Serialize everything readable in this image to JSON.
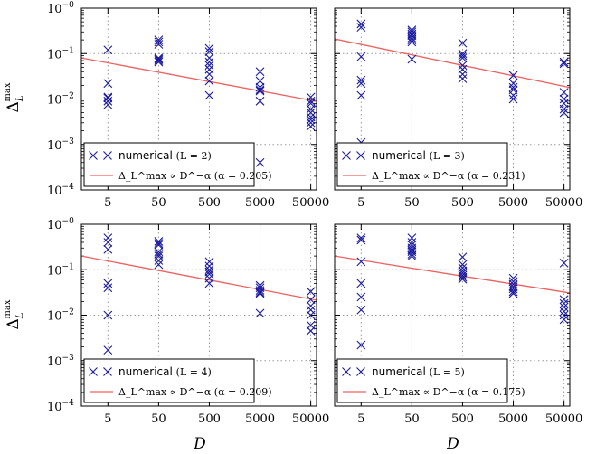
{
  "chart_data": [
    {
      "type": "scatter",
      "panel": "L=2",
      "x_ticks": [
        "5",
        "50",
        "500",
        "5000",
        "50000"
      ],
      "y_ticks": [
        "10^-4",
        "10^-3",
        "10^-2",
        "10^-1",
        "10^0"
      ],
      "xlabel": "",
      "ylabel": "Δ_L^max",
      "yscale": "log",
      "xscale": "log",
      "xlim": [
        1.5,
        65000
      ],
      "ylim": [
        0.0001,
        1
      ],
      "grid": true,
      "legend_position": "lower-left",
      "series": [
        {
          "name": "numerical (L = 2)",
          "marker": "x",
          "color": "#1a1aa0",
          "x": [
            5,
            5,
            5,
            5,
            5,
            5,
            50,
            50,
            50,
            50,
            50,
            50,
            50,
            500,
            500,
            500,
            500,
            500,
            500,
            500,
            500,
            500,
            5000,
            5000,
            5000,
            5000,
            5000,
            5000,
            5000,
            50000,
            50000,
            50000,
            50000,
            50000,
            50000,
            50000,
            50000,
            50000
          ],
          "y": [
            0.12,
            0.022,
            0.011,
            0.0105,
            0.009,
            0.0075,
            0.2,
            0.18,
            0.16,
            0.08,
            0.075,
            0.07,
            0.065,
            0.13,
            0.11,
            0.08,
            0.065,
            0.055,
            0.045,
            0.035,
            0.025,
            0.012,
            0.04,
            0.025,
            0.018,
            0.016,
            0.015,
            0.009,
            0.0004,
            0.011,
            0.009,
            0.008,
            0.006,
            0.005,
            0.004,
            0.0035,
            0.003,
            0.0025
          ]
        },
        {
          "name": "Δ_L^max ∝ D^-α (α = 0.205)",
          "type": "line",
          "color": "#f06060",
          "x": [
            1.5,
            65000
          ],
          "y": [
            0.08,
            0.0089
          ]
        }
      ]
    },
    {
      "type": "scatter",
      "panel": "L=3",
      "x_ticks": [
        "5",
        "50",
        "500",
        "5000",
        "50000"
      ],
      "y_ticks": [],
      "xlabel": "",
      "ylabel": "",
      "yscale": "log",
      "xscale": "log",
      "xlim": [
        1.5,
        65000
      ],
      "ylim": [
        0.0001,
        1
      ],
      "grid": true,
      "legend_position": "lower-left",
      "series": [
        {
          "name": "numerical (L = 3)",
          "marker": "x",
          "color": "#1a1aa0",
          "x": [
            5,
            5,
            5,
            5,
            5,
            5,
            5,
            50,
            50,
            50,
            50,
            50,
            50,
            50,
            50,
            500,
            500,
            500,
            500,
            500,
            500,
            500,
            500,
            5000,
            5000,
            5000,
            5000,
            5000,
            5000,
            50000,
            50000,
            50000,
            50000,
            50000,
            50000,
            50000
          ],
          "y": [
            0.45,
            0.38,
            0.085,
            0.026,
            0.022,
            0.012,
            0.0011,
            0.33,
            0.3,
            0.27,
            0.25,
            0.22,
            0.2,
            0.18,
            0.075,
            0.17,
            0.1,
            0.09,
            0.08,
            0.055,
            0.045,
            0.035,
            0.028,
            0.033,
            0.022,
            0.018,
            0.016,
            0.012,
            0.01,
            0.065,
            0.06,
            0.014,
            0.01,
            0.008,
            0.006,
            0.005
          ]
        },
        {
          "name": "Δ_L^max ∝ D^-α (α = 0.231)",
          "type": "line",
          "color": "#f06060",
          "x": [
            1.5,
            65000
          ],
          "y": [
            0.21,
            0.0179
          ]
        }
      ]
    },
    {
      "type": "scatter",
      "panel": "L=4",
      "x_ticks": [
        "5",
        "50",
        "500",
        "5000",
        "50000"
      ],
      "y_ticks": [
        "10^-4",
        "10^-3",
        "10^-2",
        "10^-1",
        "10^0"
      ],
      "xlabel": "D",
      "ylabel": "Δ_L^max",
      "yscale": "log",
      "xscale": "log",
      "xlim": [
        1.5,
        65000
      ],
      "ylim": [
        0.0001,
        1
      ],
      "grid": true,
      "legend_position": "lower-left",
      "series": [
        {
          "name": "numerical (L = 4)",
          "marker": "x",
          "color": "#1a1aa0",
          "x": [
            5,
            5,
            5,
            5,
            5,
            5,
            5,
            50,
            50,
            50,
            50,
            50,
            50,
            50,
            50,
            500,
            500,
            500,
            500,
            500,
            500,
            500,
            5000,
            5000,
            5000,
            5000,
            5000,
            5000,
            50000,
            50000,
            50000,
            50000,
            50000,
            50000,
            50000
          ],
          "y": [
            0.5,
            0.4,
            0.28,
            0.05,
            0.04,
            0.01,
            0.0017,
            0.42,
            0.38,
            0.35,
            0.25,
            0.22,
            0.2,
            0.16,
            0.13,
            0.15,
            0.12,
            0.1,
            0.09,
            0.08,
            0.065,
            0.05,
            0.045,
            0.04,
            0.035,
            0.032,
            0.03,
            0.011,
            0.033,
            0.022,
            0.016,
            0.013,
            0.01,
            0.006,
            0.0045
          ]
        },
        {
          "name": "Δ_L^max ∝ D^-α (α = 0.209)",
          "type": "line",
          "color": "#f06060",
          "x": [
            1.5,
            65000
          ],
          "y": [
            0.2,
            0.0214
          ]
        }
      ]
    },
    {
      "type": "scatter",
      "panel": "L=5",
      "x_ticks": [
        "5",
        "50",
        "500",
        "5000",
        "50000"
      ],
      "y_ticks": [],
      "xlabel": "D",
      "ylabel": "",
      "yscale": "log",
      "xscale": "log",
      "xlim": [
        1.5,
        65000
      ],
      "ylim": [
        0.0001,
        1
      ],
      "grid": true,
      "legend_position": "lower-left",
      "series": [
        {
          "name": "numerical (L = 5)",
          "marker": "x",
          "color": "#1a1aa0",
          "x": [
            5,
            5,
            5,
            5,
            5,
            5,
            5,
            50,
            50,
            50,
            50,
            50,
            50,
            50,
            50,
            500,
            500,
            500,
            500,
            500,
            500,
            500,
            500,
            5000,
            5000,
            5000,
            5000,
            5000,
            5000,
            5000,
            50000,
            50000,
            50000,
            50000,
            50000,
            50000,
            50000
          ],
          "y": [
            0.5,
            0.45,
            0.15,
            0.05,
            0.025,
            0.013,
            0.0022,
            0.5,
            0.4,
            0.35,
            0.3,
            0.27,
            0.25,
            0.22,
            0.2,
            0.19,
            0.13,
            0.11,
            0.095,
            0.085,
            0.075,
            0.068,
            0.062,
            0.065,
            0.055,
            0.048,
            0.042,
            0.038,
            0.033,
            0.03,
            0.14,
            0.022,
            0.018,
            0.015,
            0.012,
            0.01,
            0.008
          ]
        },
        {
          "name": "Δ_L^max ∝ D^-α (α = 0.175)",
          "type": "line",
          "color": "#f06060",
          "x": [
            1.5,
            65000
          ],
          "y": [
            0.2,
            0.0308
          ]
        }
      ]
    }
  ],
  "legends": [
    {
      "numerical_text": "numerical",
      "numerical_param": "(L = 2)",
      "fit_text": "Δ_L^max ∝ D^−α",
      "fit_param": "(α = 0.205)"
    },
    {
      "numerical_text": "numerical",
      "numerical_param": "(L = 3)",
      "fit_text": "Δ_L^max ∝ D^−α",
      "fit_param": "(α = 0.231)"
    },
    {
      "numerical_text": "numerical",
      "numerical_param": "(L = 4)",
      "fit_text": "Δ_L^max ∝ D^−α",
      "fit_param": "(α = 0.209)"
    },
    {
      "numerical_text": "numerical",
      "numerical_param": "(L = 5)",
      "fit_text": "Δ_L^max ∝ D^−α",
      "fit_param": "(α = 0.175)"
    }
  ],
  "axis_labels": {
    "y_top": "Δ",
    "y_top_sub": "L",
    "y_top_sup": "max",
    "y_bottom": "Δ",
    "y_bottom_sub": "L",
    "y_bottom_sup": "max",
    "x_left": "D",
    "x_right": "D"
  },
  "ytick_labels": {
    "base": "10",
    "exps": [
      "−4",
      "−3",
      "−2",
      "−1",
      "−0"
    ]
  }
}
